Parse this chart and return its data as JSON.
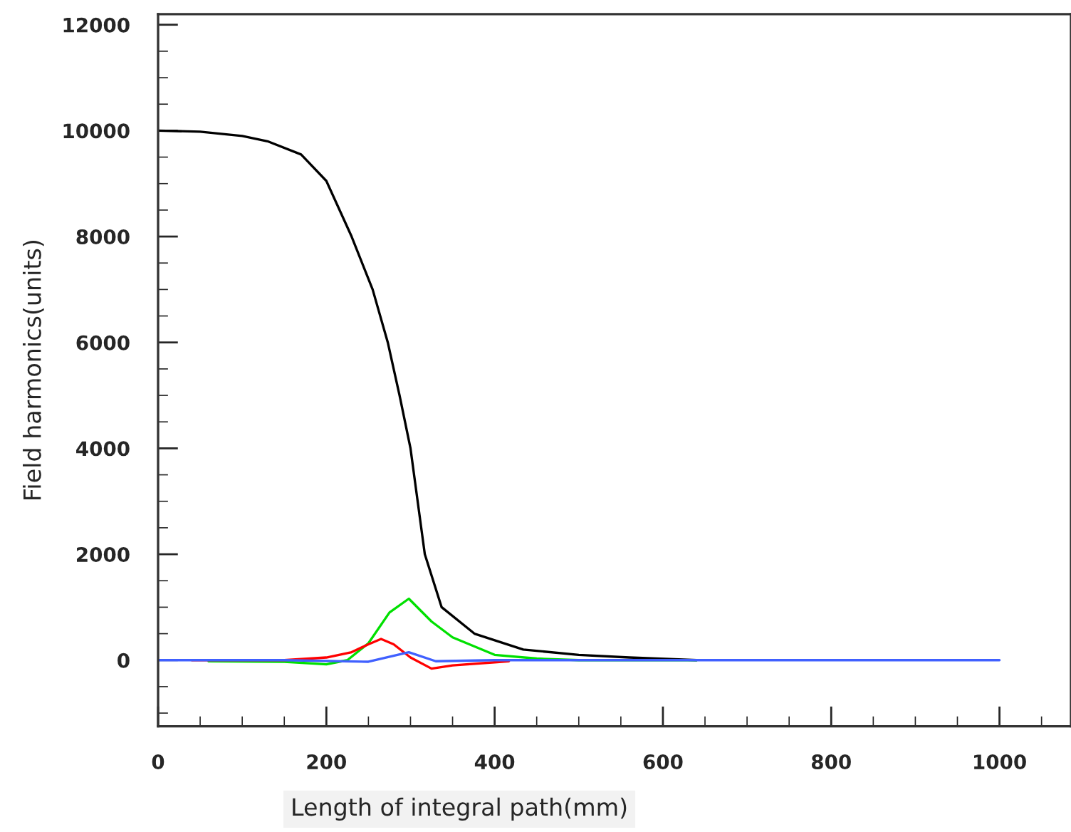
{
  "chart_data": {
    "type": "line",
    "xlabel": "Length of integral path(mm)",
    "ylabel": "Field harmonics(units)",
    "xlim": [
      0,
      1085
    ],
    "xticks": [
      0,
      200,
      400,
      600,
      800,
      1000
    ],
    "ylim": [
      -1250,
      12200
    ],
    "yticks": [
      0,
      2000,
      4000,
      6000,
      8000,
      10000,
      12000
    ],
    "grid": false,
    "legend": false,
    "marker": "none",
    "line_style": "solid",
    "series": [
      {
        "color": "#000000",
        "x": [
          0,
          50,
          100,
          130,
          170,
          200,
          230,
          255,
          273,
          287,
          300,
          317,
          337,
          376,
          434,
          500,
          560,
          640
        ],
        "values": [
          10000,
          9980,
          9900,
          9800,
          9550,
          9050,
          8000,
          7000,
          6000,
          5000,
          4000,
          2000,
          1000,
          500,
          200,
          100,
          50,
          0
        ]
      },
      {
        "color": "#00e000",
        "x": [
          60,
          150,
          200,
          225,
          250,
          275,
          298,
          325,
          350,
          400,
          450,
          500,
          640
        ],
        "values": [
          -20,
          -30,
          -80,
          0,
          320,
          900,
          1160,
          730,
          430,
          100,
          30,
          0,
          0
        ]
      },
      {
        "color": "#ff0000",
        "x": [
          40,
          150,
          200,
          230,
          250,
          265,
          280,
          300,
          325,
          350,
          400,
          417
        ],
        "values": [
          0,
          0,
          50,
          150,
          300,
          400,
          300,
          50,
          -160,
          -100,
          -40,
          -20
        ]
      },
      {
        "color": "#4060ff",
        "x": [
          0,
          150,
          250,
          298,
          330,
          400,
          1000
        ],
        "values": [
          0,
          0,
          -30,
          150,
          -20,
          0,
          0
        ]
      }
    ]
  }
}
